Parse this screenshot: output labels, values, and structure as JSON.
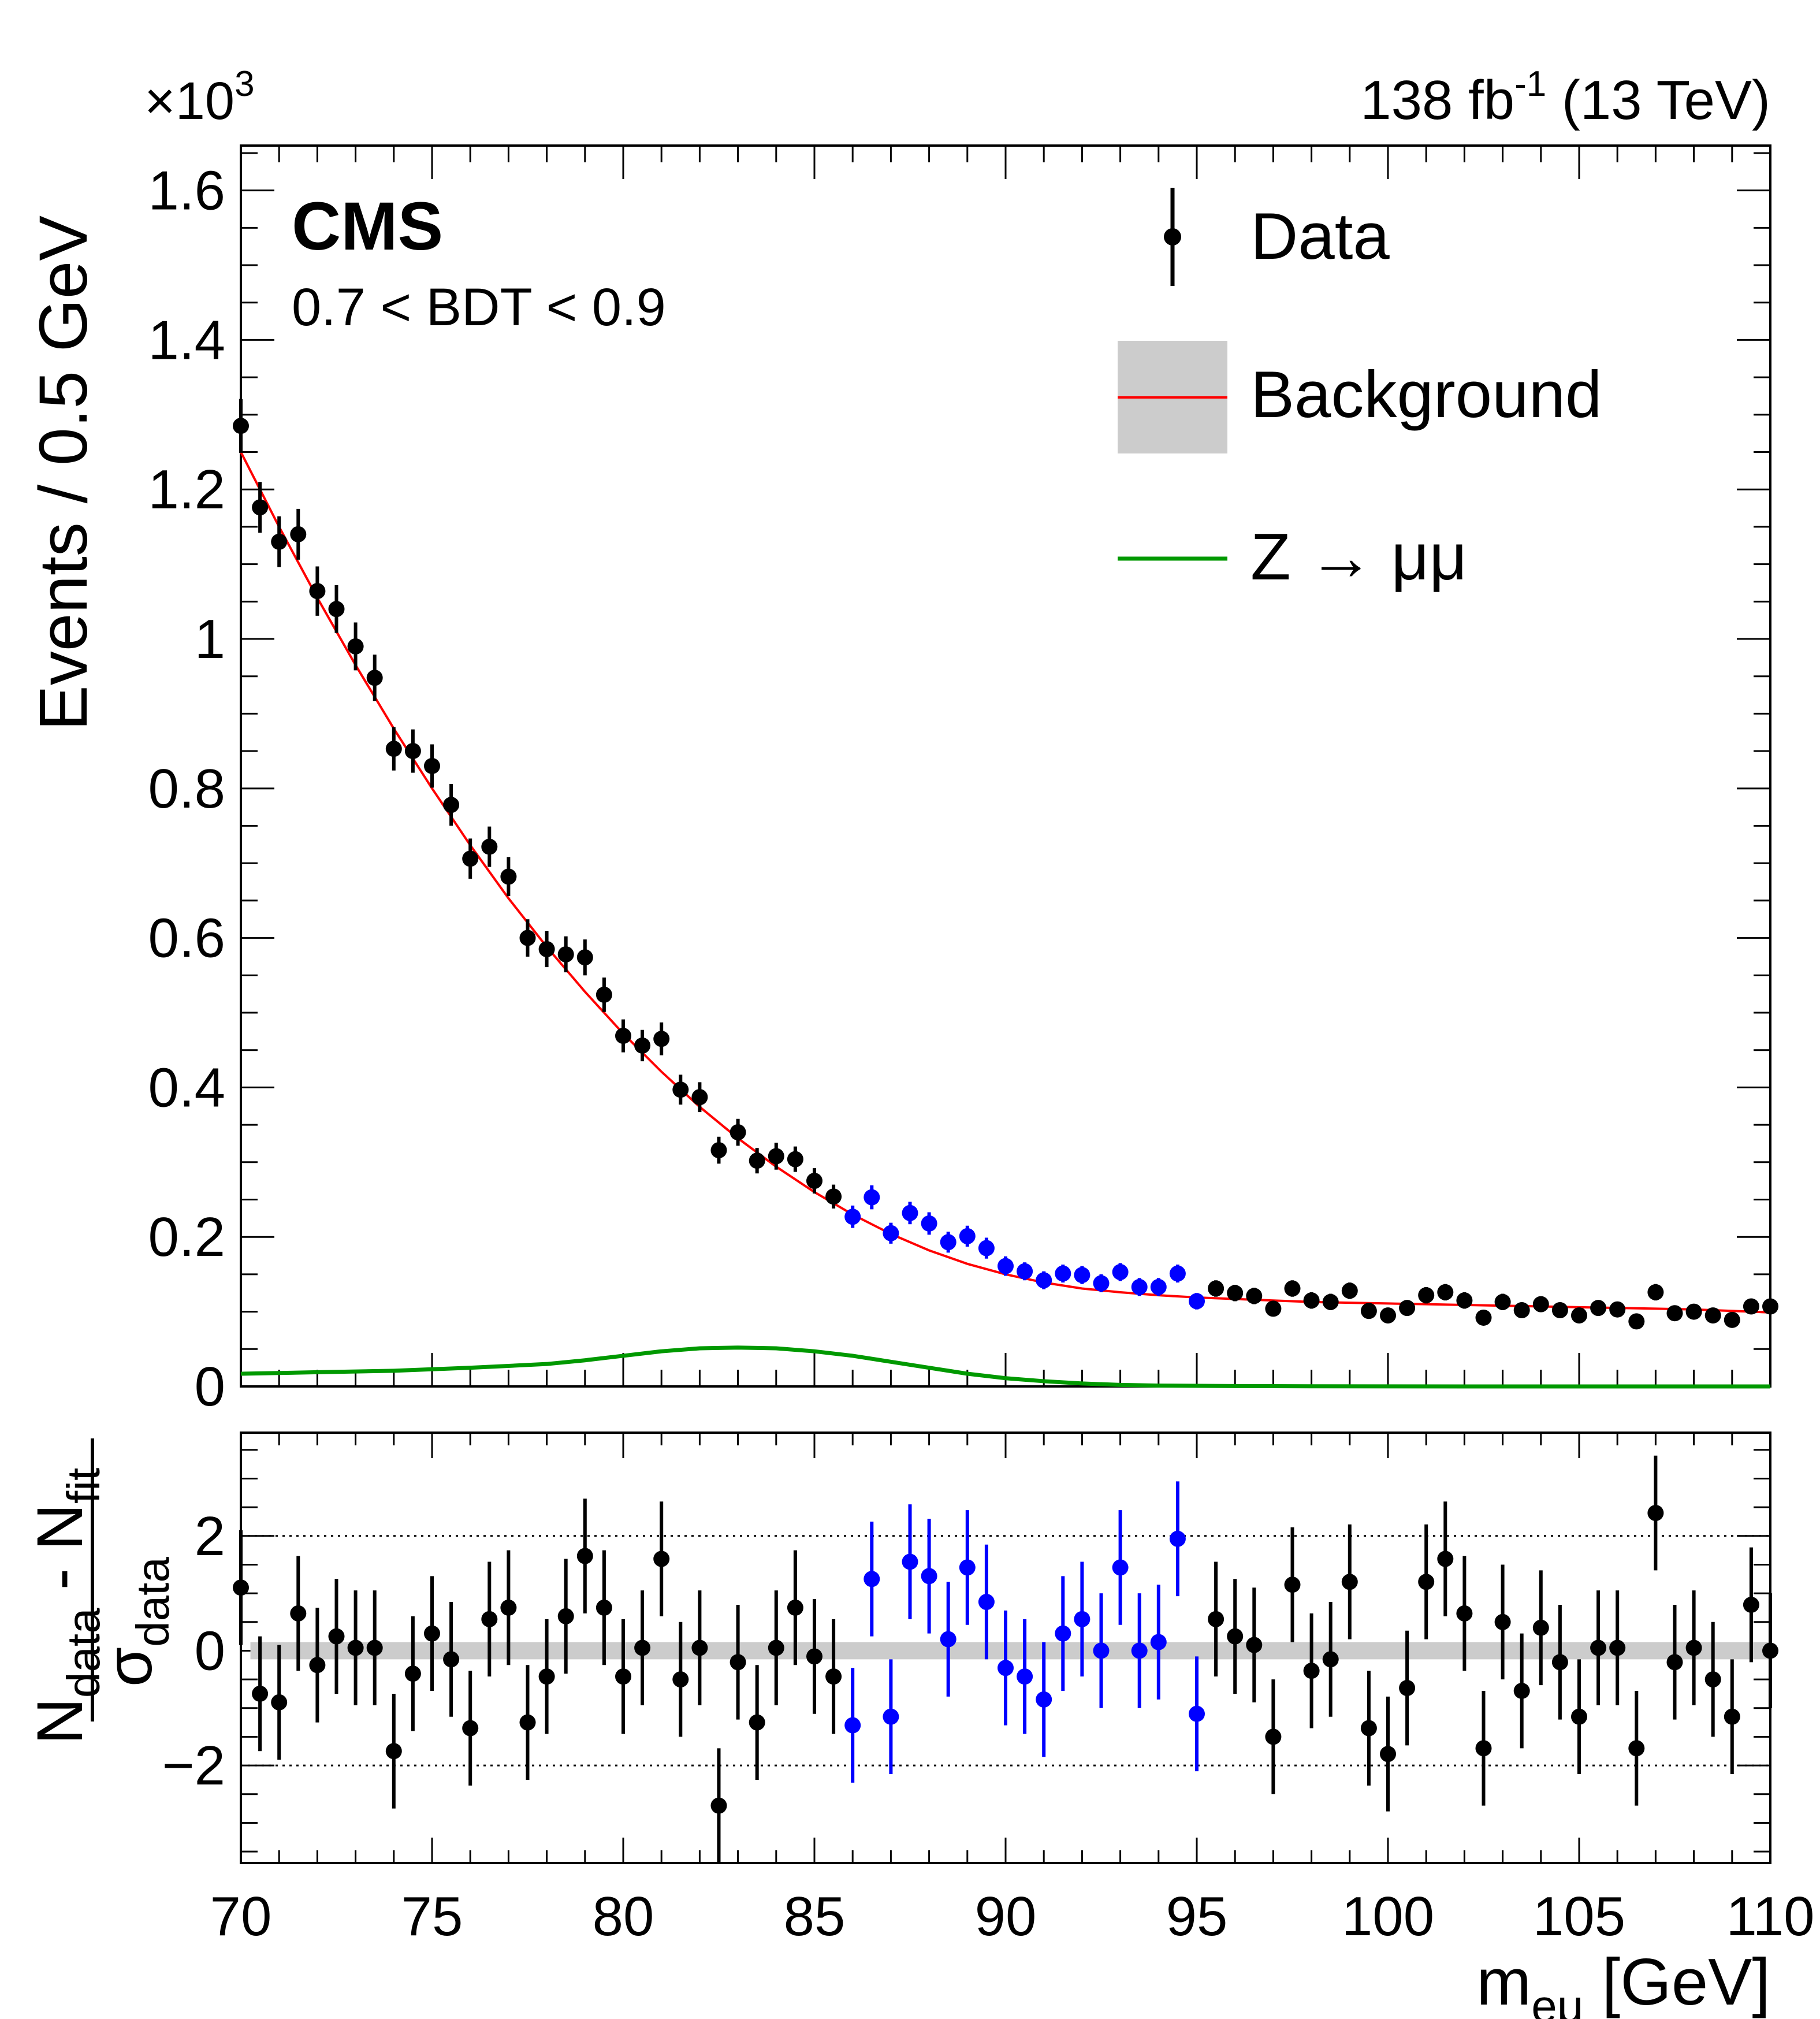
{
  "header": {
    "multiplier": "×10",
    "multiplier_exp": "3",
    "lumi": "138 fb",
    "lumi_exp": "-1",
    "lumi_energy": " (13 TeV)",
    "experiment": "CMS",
    "category": "0.7 < BDT < 0.9"
  },
  "legend": {
    "data": "Data",
    "background": "Background",
    "signal_pre": "Z",
    "signal_arrow": "→",
    "signal_post": "μμ"
  },
  "axes": {
    "top_ylabel": "Events / 0.5 GeV",
    "xlabel_main": "m",
    "xlabel_sub": "eμ",
    "xlabel_unit": " [GeV]",
    "pull_num_a": "N",
    "pull_num_a_sub": "data",
    "pull_num_minus": " - ",
    "pull_num_b": "N",
    "pull_num_b_sub": "fit",
    "pull_den": "σ",
    "pull_den_sub": "data",
    "top_yticks": [
      "0",
      "0.2",
      "0.4",
      "0.6",
      "0.8",
      "1",
      "1.2",
      "1.4",
      "1.6"
    ],
    "pull_yticks": [
      "−2",
      "0",
      "2"
    ],
    "xticks": [
      "70",
      "75",
      "80",
      "85",
      "90",
      "95",
      "100",
      "105",
      "110"
    ]
  },
  "colors": {
    "data": "#000000",
    "blinded_data": "#0000ff",
    "background_fit": "#ff0000",
    "background_band": "#cccccc",
    "signal": "#009900"
  },
  "chart_data": [
    {
      "type": "scatter",
      "panel": "main",
      "x_range": [
        70,
        110
      ],
      "y_range": [
        0,
        1.66
      ],
      "y_unit_multiplier": 1000,
      "bin_width": 0.5,
      "series": [
        {
          "name": "Data",
          "x": [
            70.0,
            70.5,
            71.0,
            71.5,
            72.0,
            72.5,
            73.0,
            73.5,
            74.0,
            74.5,
            75.0,
            75.5,
            76.0,
            76.5,
            77.0,
            77.5,
            78.0,
            78.5,
            79.0,
            79.5,
            80.0,
            80.5,
            81.0,
            81.5,
            82.0,
            82.5,
            83.0,
            83.5,
            84.0,
            84.5,
            85.0,
            85.5,
            86.0,
            86.5,
            87.0,
            87.5,
            88.0,
            88.5,
            89.0,
            89.5,
            90.0,
            90.5,
            91.0,
            91.5,
            92.0,
            92.5,
            93.0,
            93.5,
            94.0,
            94.5,
            95.0,
            95.5,
            96.0,
            96.5,
            97.0,
            97.5,
            98.0,
            98.5,
            99.0,
            99.5,
            100.0,
            100.5,
            101.0,
            101.5,
            102.0,
            102.5,
            103.0,
            103.5,
            104.0,
            104.5,
            105.0,
            105.5,
            106.0,
            106.5,
            107.0,
            107.5,
            108.0,
            108.5,
            109.0,
            109.5,
            110.0
          ],
          "y": [
            1.285,
            1.176,
            1.13,
            1.14,
            1.064,
            1.04,
            0.99,
            0.948,
            0.853,
            0.85,
            0.83,
            0.778,
            0.706,
            0.722,
            0.682,
            0.6,
            0.585,
            0.578,
            0.574,
            0.524,
            0.469,
            0.456,
            0.465,
            0.397,
            0.387,
            0.316,
            0.34,
            0.302,
            0.308,
            0.304,
            0.275,
            0.254,
            0.227,
            0.253,
            0.205,
            0.232,
            0.218,
            0.193,
            0.201,
            0.185,
            0.161,
            0.154,
            0.142,
            0.151,
            0.149,
            0.138,
            0.153,
            0.133,
            0.133,
            0.151,
            0.114,
            0.131,
            0.125,
            0.121,
            0.104,
            0.131,
            0.115,
            0.113,
            0.128,
            0.101,
            0.095,
            0.105,
            0.122,
            0.126,
            0.115,
            0.092,
            0.113,
            0.102,
            0.11,
            0.102,
            0.095,
            0.105,
            0.103,
            0.087,
            0.126,
            0.098,
            0.1,
            0.095,
            0.089,
            0.107,
            0.107
          ],
          "y_err": [
            0.036,
            0.034,
            0.034,
            0.034,
            0.033,
            0.032,
            0.032,
            0.031,
            0.029,
            0.029,
            0.029,
            0.028,
            0.027,
            0.027,
            0.026,
            0.025,
            0.024,
            0.024,
            0.024,
            0.023,
            0.022,
            0.021,
            0.022,
            0.02,
            0.02,
            0.018,
            0.018,
            0.017,
            0.018,
            0.017,
            0.017,
            0.016,
            0.015,
            0.016,
            0.014,
            0.015,
            0.015,
            0.014,
            0.014,
            0.014,
            0.013,
            0.012,
            0.012,
            0.012,
            0.012,
            0.012,
            0.012,
            0.012,
            0.012,
            0.012,
            0.011,
            0.011,
            0.011,
            0.011,
            0.01,
            0.011,
            0.011,
            0.011,
            0.011,
            0.01,
            0.01,
            0.01,
            0.011,
            0.011,
            0.011,
            0.01,
            0.011,
            0.01,
            0.01,
            0.01,
            0.01,
            0.01,
            0.01,
            0.009,
            0.011,
            0.01,
            0.01,
            0.01,
            0.009,
            0.01,
            0.01
          ],
          "blinded_x_range": [
            86.0,
            95.0
          ]
        },
        {
          "name": "Background",
          "x": [
            70,
            71,
            72,
            73,
            74,
            75,
            76,
            77,
            78,
            79,
            80,
            81,
            82,
            83,
            84,
            85,
            86,
            87,
            88,
            89,
            90,
            91,
            92,
            93,
            94,
            95,
            96,
            97,
            98,
            99,
            100,
            101,
            102,
            103,
            104,
            105,
            106,
            107,
            108,
            109,
            110
          ],
          "y": [
            1.25,
            1.15,
            1.055,
            0.965,
            0.88,
            0.8,
            0.724,
            0.653,
            0.588,
            0.528,
            0.472,
            0.421,
            0.374,
            0.332,
            0.294,
            0.26,
            0.23,
            0.204,
            0.182,
            0.164,
            0.15,
            0.139,
            0.131,
            0.126,
            0.122,
            0.119,
            0.117,
            0.115,
            0.113,
            0.112,
            0.111,
            0.11,
            0.109,
            0.108,
            0.107,
            0.106,
            0.105,
            0.104,
            0.103,
            0.101,
            0.099
          ]
        },
        {
          "name": "Z → μμ",
          "x": [
            70,
            72,
            74,
            76,
            78,
            79,
            80,
            81,
            82,
            83,
            84,
            85,
            86,
            87,
            88,
            89,
            90,
            91,
            92,
            93,
            94,
            96,
            98,
            100,
            104,
            110
          ],
          "y": [
            0.017,
            0.019,
            0.021,
            0.025,
            0.03,
            0.035,
            0.041,
            0.047,
            0.051,
            0.052,
            0.051,
            0.047,
            0.041,
            0.033,
            0.025,
            0.017,
            0.011,
            0.007,
            0.004,
            0.002,
            0.0012,
            0.0005,
            0.0002,
            0.0001,
            0.0,
            0.0
          ]
        }
      ]
    },
    {
      "type": "scatter",
      "panel": "pull",
      "x_range": [
        70,
        110
      ],
      "y_range": [
        -3.7,
        3.8
      ],
      "reference_lines": [
        -2,
        2
      ],
      "series": [
        {
          "name": "Pull",
          "x": [
            70.0,
            70.5,
            71.0,
            71.5,
            72.0,
            72.5,
            73.0,
            73.5,
            74.0,
            74.5,
            75.0,
            75.5,
            76.0,
            76.5,
            77.0,
            77.5,
            78.0,
            78.5,
            79.0,
            79.5,
            80.0,
            80.5,
            81.0,
            81.5,
            82.0,
            82.5,
            83.0,
            83.5,
            84.0,
            84.5,
            85.0,
            85.5,
            86.0,
            86.5,
            87.0,
            87.5,
            88.0,
            88.5,
            89.0,
            89.5,
            90.0,
            90.5,
            91.0,
            91.5,
            92.0,
            92.5,
            93.0,
            93.5,
            94.0,
            94.5,
            95.0,
            95.5,
            96.0,
            96.5,
            97.0,
            97.5,
            98.0,
            98.5,
            99.0,
            99.5,
            100.0,
            100.5,
            101.0,
            101.5,
            102.0,
            102.5,
            103.0,
            103.5,
            104.0,
            104.5,
            105.0,
            105.5,
            106.0,
            106.5,
            107.0,
            107.5,
            108.0,
            108.5,
            109.0,
            109.5,
            110.0
          ],
          "y": [
            1.1,
            -0.75,
            -0.9,
            0.65,
            -0.25,
            0.25,
            0.05,
            0.05,
            -1.75,
            -0.4,
            0.3,
            -0.15,
            -1.35,
            0.55,
            0.75,
            -1.25,
            -0.45,
            0.6,
            1.65,
            0.75,
            -0.45,
            0.05,
            1.6,
            -0.5,
            0.05,
            -2.7,
            -0.2,
            -1.25,
            0.05,
            0.75,
            -0.1,
            -0.45,
            -1.3,
            1.25,
            -1.15,
            1.55,
            1.3,
            0.2,
            1.45,
            0.85,
            -0.3,
            -0.45,
            -0.85,
            0.3,
            0.55,
            0.0,
            1.45,
            0.0,
            0.15,
            1.95,
            -1.1,
            0.55,
            0.25,
            0.1,
            -1.5,
            1.15,
            -0.35,
            -0.15,
            1.2,
            -1.35,
            -1.8,
            -0.65,
            1.2,
            1.6,
            0.65,
            -1.7,
            0.5,
            -0.7,
            0.4,
            -0.2,
            -1.15,
            0.05,
            0.05,
            -1.7,
            2.4,
            -0.2,
            0.05,
            -0.5,
            -1.15,
            0.8,
            0.0
          ],
          "y_err": [
            1.0,
            1.0,
            1.0,
            1.0,
            1.0,
            1.0,
            1.0,
            1.0,
            1.0,
            1.0,
            1.0,
            1.0,
            1.0,
            1.0,
            1.0,
            1.0,
            1.0,
            1.0,
            1.0,
            1.0,
            1.0,
            1.0,
            1.0,
            1.0,
            1.0,
            1.0,
            1.0,
            1.0,
            1.0,
            1.0,
            1.0,
            1.0,
            1.0,
            1.0,
            1.0,
            1.0,
            1.0,
            1.0,
            1.0,
            1.0,
            1.0,
            1.0,
            1.0,
            1.0,
            1.0,
            1.0,
            1.0,
            1.0,
            1.0,
            1.0,
            1.0,
            1.0,
            1.0,
            1.0,
            1.0,
            1.0,
            1.0,
            1.0,
            1.0,
            1.0,
            1.0,
            1.0,
            1.0,
            1.0,
            1.0,
            1.0,
            1.0,
            1.0,
            1.0,
            1.0,
            1.0,
            1.0,
            1.0,
            1.0,
            1.0,
            1.0,
            1.0,
            1.0,
            1.0,
            1.0,
            1.0
          ],
          "blinded_x_range": [
            86.0,
            95.0
          ]
        }
      ]
    }
  ]
}
